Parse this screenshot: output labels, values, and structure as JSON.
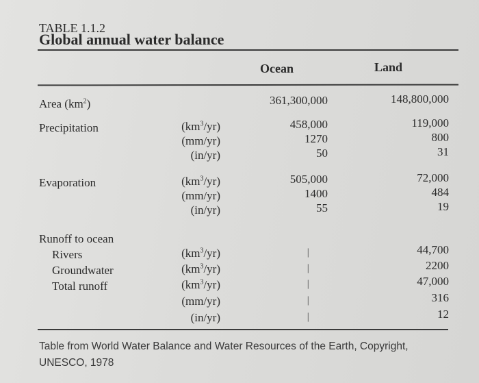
{
  "table_number": "TABLE 1.1.2",
  "title": "Global annual water balance",
  "columns": {
    "ocean": "Ocean",
    "land": "Land"
  },
  "rows": [
    {
      "label": "Area (km²)",
      "unit": "",
      "ocean": "361,300,000",
      "land": "148,800,000"
    },
    {
      "label": "Precipitation",
      "unit": "(km³/yr)",
      "ocean": "458,000",
      "land": "119,000"
    },
    {
      "label": "",
      "unit": "(mm/yr)",
      "ocean": "1270",
      "land": "800"
    },
    {
      "label": "",
      "unit": "(in/yr)",
      "ocean": "50",
      "land": "31"
    },
    {
      "label": "Evaporation",
      "unit": "(km³/yr)",
      "ocean": "505,000",
      "land": "72,000"
    },
    {
      "label": "",
      "unit": "(mm/yr)",
      "ocean": "1400",
      "land": "484"
    },
    {
      "label": "",
      "unit": "(in/yr)",
      "ocean": "55",
      "land": "19"
    },
    {
      "label": "Runoff to ocean",
      "unit": "",
      "ocean": "",
      "land": ""
    },
    {
      "label": "Rivers",
      "unit": "(km³/yr)",
      "ocean": "—",
      "land": "44,700"
    },
    {
      "label": "Groundwater",
      "unit": "(km³/yr)",
      "ocean": "—",
      "land": "2200"
    },
    {
      "label": "Total runoff",
      "unit": "(km³/yr)",
      "ocean": "—",
      "land": "47,000"
    },
    {
      "label": "",
      "unit": "(mm/yr)",
      "ocean": "—",
      "land": "316"
    },
    {
      "label": "",
      "unit": "(in/yr)",
      "ocean": "—",
      "land": "12"
    }
  ],
  "footnote_line1": "Table from World Water Balance and Water Resources of the Earth, Copyright,",
  "footnote_line2": "UNESCO, 1978"
}
